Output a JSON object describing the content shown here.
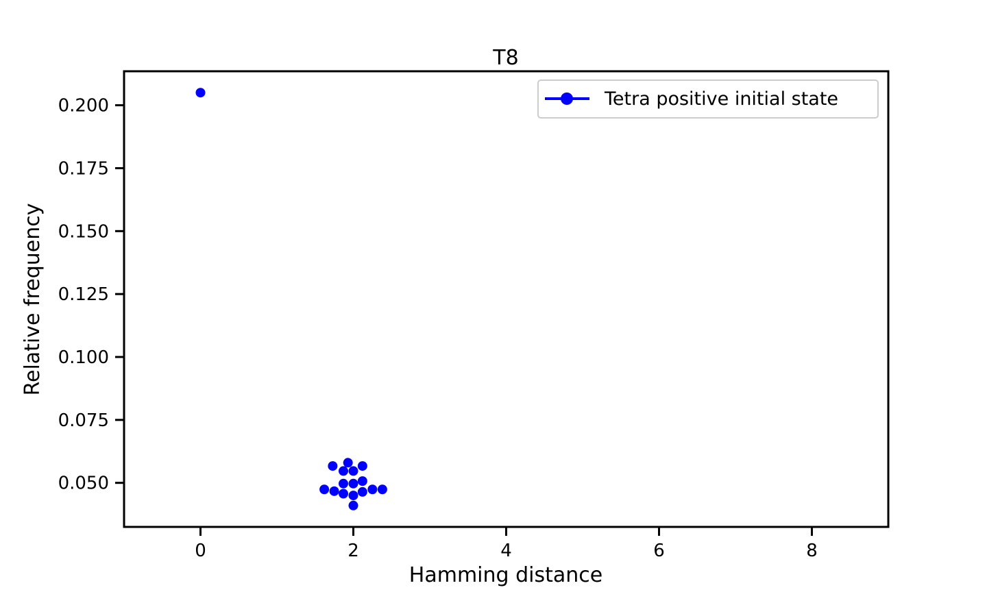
{
  "chart_data": {
    "type": "scatter",
    "title": "T8",
    "xlabel": "Hamming distance",
    "ylabel": "Relative frequency",
    "xlim": [
      -1,
      9
    ],
    "ylim": [
      0.0325,
      0.2135
    ],
    "x_ticks": [
      0,
      2,
      4,
      6,
      8
    ],
    "x_tick_labels": [
      "0",
      "2",
      "4",
      "6",
      "8"
    ],
    "y_ticks": [
      0.05,
      0.075,
      0.1,
      0.125,
      0.15,
      0.175,
      0.2
    ],
    "y_tick_labels": [
      "0.050",
      "0.075",
      "0.100",
      "0.125",
      "0.150",
      "0.175",
      "0.200"
    ],
    "grid": false,
    "legend_position": "top-right",
    "series": [
      {
        "name": "Tetra positive initial state",
        "color": "#0000ff",
        "points": [
          {
            "x": 0.0,
            "y": 0.205
          },
          {
            "x": 1.73,
            "y": 0.0567
          },
          {
            "x": 1.93,
            "y": 0.058
          },
          {
            "x": 2.12,
            "y": 0.0567
          },
          {
            "x": 1.87,
            "y": 0.0547
          },
          {
            "x": 2.0,
            "y": 0.0547
          },
          {
            "x": 2.12,
            "y": 0.0507
          },
          {
            "x": 1.87,
            "y": 0.0497
          },
          {
            "x": 2.0,
            "y": 0.0497
          },
          {
            "x": 1.62,
            "y": 0.0474
          },
          {
            "x": 1.75,
            "y": 0.0467
          },
          {
            "x": 1.87,
            "y": 0.0457
          },
          {
            "x": 2.0,
            "y": 0.045
          },
          {
            "x": 2.12,
            "y": 0.0464
          },
          {
            "x": 2.25,
            "y": 0.0474
          },
          {
            "x": 2.38,
            "y": 0.0474
          },
          {
            "x": 2.0,
            "y": 0.041
          }
        ]
      }
    ]
  }
}
